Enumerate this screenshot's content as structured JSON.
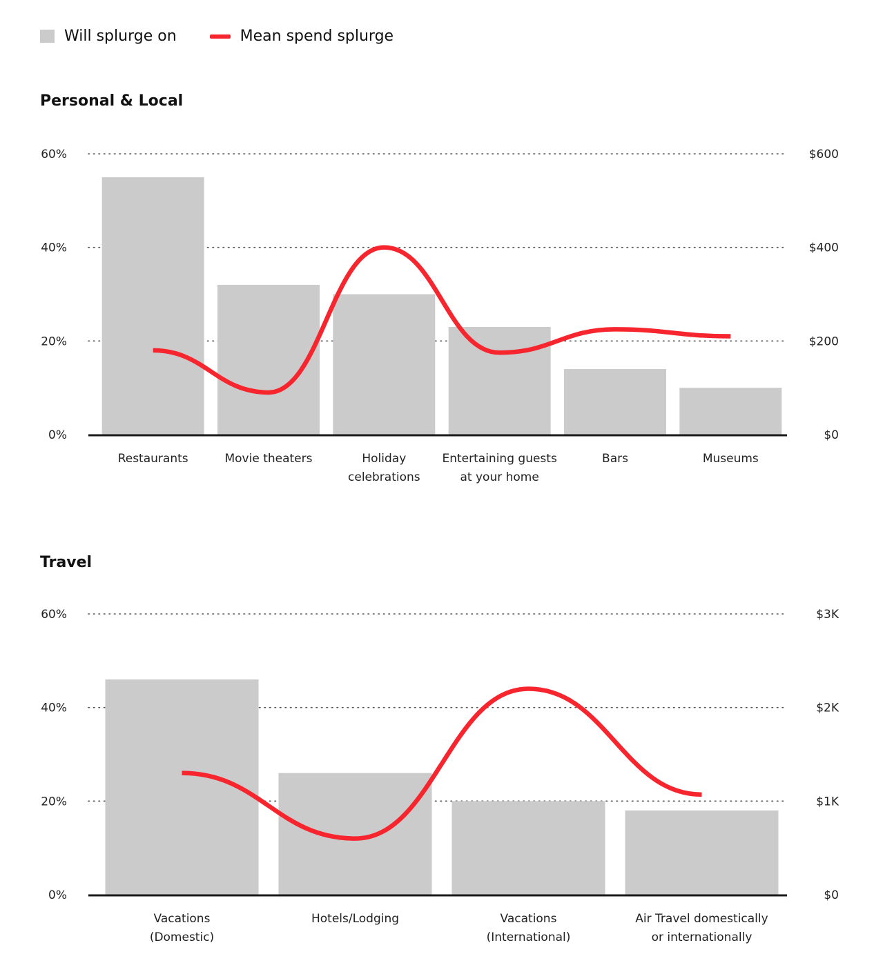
{
  "legend": {
    "bar_label": "Will splurge on",
    "line_label": "Mean spend splurge"
  },
  "colors": {
    "bar": "#cbcbcb",
    "line": "#f7262e",
    "axis": "#1a1a1a",
    "grid": "#555555"
  },
  "chart_data": [
    {
      "type": "bar",
      "title": "Personal & Local",
      "categories": [
        [
          "Restaurants"
        ],
        [
          "Movie theaters"
        ],
        [
          "Holiday",
          "celebrations"
        ],
        [
          "Entertaining guests",
          "at your home"
        ],
        [
          "Bars"
        ],
        [
          "Museums"
        ]
      ],
      "series": [
        {
          "name": "Will splurge on",
          "type": "bar",
          "axis": "left",
          "values": [
            55,
            32,
            30,
            23,
            14,
            10
          ]
        },
        {
          "name": "Mean spend splurge",
          "type": "line",
          "axis": "right",
          "values": [
            180,
            90,
            400,
            175,
            225,
            210
          ]
        }
      ],
      "ylim_left": [
        0,
        60
      ],
      "ylim_right": [
        0,
        600
      ],
      "yticks_left": [
        "0%",
        "20%",
        "40%",
        "60%"
      ],
      "yticks_right": [
        "$0",
        "$200",
        "$400",
        "$600"
      ],
      "grid": true,
      "legend": "top-left"
    },
    {
      "type": "bar",
      "title": "Travel",
      "categories": [
        [
          "Vacations",
          "(Domestic)"
        ],
        [
          "Hotels/Lodging"
        ],
        [
          "Vacations",
          "(International)"
        ],
        [
          "Air Travel domestically",
          "or internationally"
        ]
      ],
      "series": [
        {
          "name": "Will splurge on",
          "type": "bar",
          "axis": "left",
          "values": [
            46,
            26,
            20,
            18
          ]
        },
        {
          "name": "Mean spend splurge",
          "type": "line",
          "axis": "right",
          "values": [
            1300,
            600,
            2200,
            1070
          ]
        }
      ],
      "ylim_left": [
        0,
        60
      ],
      "ylim_right": [
        0,
        3000
      ],
      "yticks_left": [
        "0%",
        "20%",
        "40%",
        "60%"
      ],
      "yticks_right": [
        "$0",
        "$1K",
        "$2K",
        "$3K"
      ],
      "grid": true,
      "legend": "top-left"
    }
  ]
}
